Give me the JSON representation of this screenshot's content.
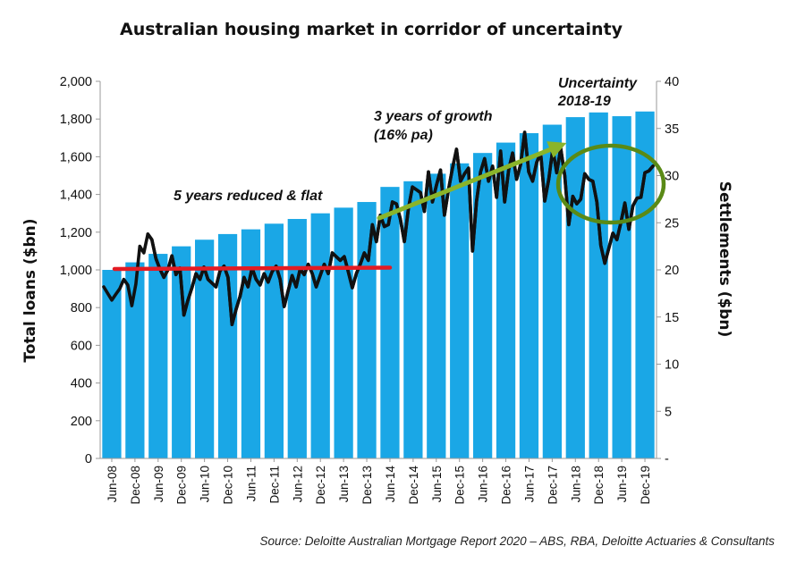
{
  "title": "Australian housing market in corridor of uncertainty",
  "source": "Source: Deloitte Australian Mortgage Report 2020 – ABS, RBA, Deloitte Actuaries & Consultants",
  "chart_data": {
    "type": "bar+line",
    "title": "Australian housing market in corridor of uncertainty",
    "y_left": {
      "label": "Total loans ($bn)",
      "min": 0,
      "max": 2000,
      "ticks": [
        0,
        200,
        400,
        600,
        800,
        1000,
        1200,
        1400,
        1600,
        1800,
        2000
      ],
      "tick_labels": [
        "0",
        "200",
        "400",
        "600",
        "800",
        "1,000",
        "1,200",
        "1,400",
        "1,600",
        "1,800",
        "2,000"
      ]
    },
    "y_right": {
      "label": "Settlements ($bn)",
      "min": 0,
      "max": 40,
      "ticks": [
        0,
        5,
        10,
        15,
        20,
        25,
        30,
        35,
        40
      ],
      "tick_labels": [
        "-",
        "5",
        "10",
        "15",
        "20",
        "25",
        "30",
        "35",
        "40"
      ]
    },
    "x_tick_labels": [
      "Jun-08",
      "Dec-08",
      "Jun-09",
      "Dec-09",
      "Jun-10",
      "Dec-10",
      "Jun-11",
      "Dec-11",
      "Jun-12",
      "Dec-12",
      "Jun-13",
      "Dec-13",
      "Jun-14",
      "Dec-14",
      "Jun-15",
      "Dec-15",
      "Jun-16",
      "Dec-16",
      "Jun-17",
      "Dec-17",
      "Jun-18",
      "Dec-18",
      "Jun-19",
      "Dec-19"
    ],
    "bars": {
      "name": "Total loans ($bn)",
      "color": "#1aa7e6",
      "values": [
        1000,
        1040,
        1085,
        1125,
        1160,
        1190,
        1215,
        1245,
        1270,
        1300,
        1330,
        1360,
        1440,
        1470,
        1510,
        1565,
        1620,
        1675,
        1725,
        1770,
        1810,
        1835,
        1815,
        1840
      ]
    },
    "line": {
      "name": "Settlements ($bn)",
      "color": "#111111",
      "values": [
        18.2,
        17.5,
        16.8,
        17.4,
        18.0,
        19.0,
        18.4,
        16.2,
        18.5,
        22.5,
        21.8,
        23.8,
        23.2,
        21.2,
        20.1,
        19.2,
        20.0,
        21.5,
        19.5,
        20.2,
        15.2,
        16.8,
        18.1,
        19.6,
        19.0,
        20.3,
        19.0,
        18.6,
        18.2,
        19.9,
        20.4,
        19.2,
        14.2,
        15.8,
        17.2,
        19.2,
        18.2,
        20.2,
        19.0,
        18.4,
        19.6,
        18.7,
        19.8,
        20.4,
        19.0,
        16.1,
        17.8,
        19.4,
        18.2,
        20.1,
        19.5,
        20.6,
        19.6,
        18.2,
        19.4,
        20.6,
        19.6,
        21.8,
        21.4,
        21.0,
        21.4,
        19.8,
        18.1,
        19.6,
        20.6,
        21.8,
        21.0,
        24.8,
        23.0,
        25.8,
        24.6,
        24.8,
        27.2,
        27.0,
        25.4,
        23.0,
        26.5,
        28.8,
        28.5,
        28.2,
        26.2,
        30.4,
        27.2,
        29.0,
        30.6,
        25.8,
        28.5,
        30.8,
        32.8,
        29.4,
        30.2,
        30.8,
        22.0,
        27.3,
        30.4,
        31.8,
        29.4,
        31.0,
        27.7,
        32.6,
        27.2,
        30.6,
        32.4,
        29.6,
        31.2,
        34.6,
        30.4,
        29.4,
        31.4,
        32.4,
        27.3,
        29.6,
        32.8,
        30.3,
        32.9,
        30.0,
        24.8,
        27.8,
        27.0,
        27.5,
        30.2,
        29.6,
        29.4,
        27.2,
        22.6,
        20.7,
        22.3,
        23.9,
        23.2,
        25.0,
        27.1,
        24.3,
        26.8,
        27.6,
        27.7,
        30.3,
        30.5,
        31.0
      ],
      "overlay_from_index": 11
    }
  },
  "annotations": {
    "flat": {
      "text": "5 years reduced & flat",
      "start_value": 1005,
      "end_value": 1012,
      "color": "#e31b23"
    },
    "growth": {
      "text_line1": "3 years of growth",
      "text_line2": "(16% pa)",
      "color": "#8ab42a"
    },
    "uncertainty": {
      "text_line1": "Uncertainty",
      "text_line2": "2018-19",
      "color": "#5a8a16"
    }
  }
}
